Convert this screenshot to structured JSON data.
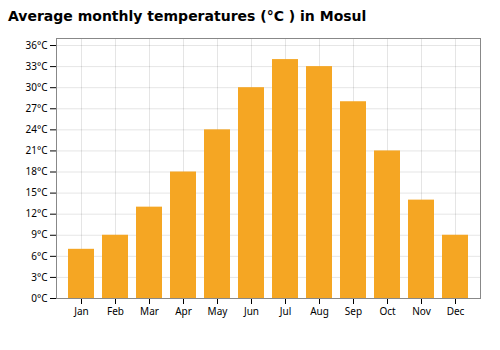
{
  "chart_data": {
    "type": "bar",
    "title": "Average monthly temperatures (°C ) in Mosul",
    "categories": [
      "Jan",
      "Feb",
      "Mar",
      "Apr",
      "May",
      "Jun",
      "Jul",
      "Aug",
      "Sep",
      "Oct",
      "Nov",
      "Dec"
    ],
    "values": [
      7,
      9,
      13,
      18,
      24,
      30,
      34,
      33,
      28,
      21,
      14,
      9
    ],
    "color": "#F5A623",
    "ylim": [
      0,
      37
    ],
    "yticks": [
      {
        "value": 0,
        "label": "0°C"
      },
      {
        "value": 3,
        "label": "3°C"
      },
      {
        "value": 6,
        "label": "6°C"
      },
      {
        "value": 9,
        "label": "9°C"
      },
      {
        "value": 12,
        "label": "12°C"
      },
      {
        "value": 15,
        "label": "15°C"
      },
      {
        "value": 18,
        "label": "18°C"
      },
      {
        "value": 21,
        "label": "21°C"
      },
      {
        "value": 24,
        "label": "24°C"
      },
      {
        "value": 27,
        "label": "27°C"
      },
      {
        "value": 30,
        "label": "30°C"
      },
      {
        "value": 33,
        "label": "33°C"
      },
      {
        "value": 36,
        "label": "36°C"
      }
    ],
    "grid": true
  }
}
